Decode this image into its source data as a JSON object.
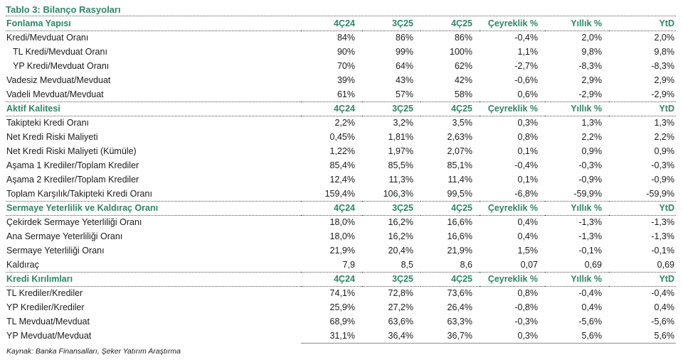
{
  "title": "Tablo 3: Bilanço Rasyoları",
  "columns": [
    "4Ç24",
    "3Ç25",
    "4Ç25",
    "Çeyreklik %",
    "Yıllık %",
    "YtD"
  ],
  "sections": [
    {
      "header": "Fonlama Yapısı",
      "rows": [
        {
          "label": "Kredi/Mevduat Oranı",
          "indent": false,
          "values": [
            "84%",
            "86%",
            "86%",
            "-0,4%",
            "2,0%",
            "2,0%"
          ]
        },
        {
          "label": "TL Kredi/Mevduat Oranı",
          "indent": true,
          "values": [
            "90%",
            "99%",
            "100%",
            "1,1%",
            "9,8%",
            "9,8%"
          ]
        },
        {
          "label": "YP Kredi/Mevduat Oranı",
          "indent": true,
          "values": [
            "70%",
            "64%",
            "62%",
            "-2,7%",
            "-8,3%",
            "-8,3%"
          ]
        },
        {
          "label": "Vadesiz Mevduat/Mevduat",
          "indent": false,
          "values": [
            "39%",
            "43%",
            "42%",
            "-0,6%",
            "2,9%",
            "2,9%"
          ]
        },
        {
          "label": "Vadeli Mevduat/Mevduat",
          "indent": false,
          "values": [
            "61%",
            "57%",
            "58%",
            "0,6%",
            "-2,9%",
            "-2,9%"
          ]
        }
      ]
    },
    {
      "header": "Aktif Kalitesi",
      "rows": [
        {
          "label": "Takipteki Kredi Oranı",
          "indent": false,
          "values": [
            "2,2%",
            "3,2%",
            "3,5%",
            "0,3%",
            "1,3%",
            "1,3%"
          ]
        },
        {
          "label": "Net Kredi Riski Maliyeti",
          "indent": false,
          "values": [
            "0,45%",
            "1,81%",
            "2,63%",
            "0,8%",
            "2,2%",
            "2,2%"
          ]
        },
        {
          "label": "Net Kredi Riski Maliyeti (Kümüle)",
          "indent": false,
          "values": [
            "1,22%",
            "1,97%",
            "2,07%",
            "0,1%",
            "0,9%",
            "0,9%"
          ]
        },
        {
          "label": "Aşama 1 Krediler/Toplam Krediler",
          "indent": false,
          "values": [
            "85,4%",
            "85,5%",
            "85,1%",
            "-0,4%",
            "-0,3%",
            "-0,3%"
          ]
        },
        {
          "label": "Aşama 2 Krediler/Toplam Krediler",
          "indent": false,
          "values": [
            "12,4%",
            "11,3%",
            "11,4%",
            "0,1%",
            "-0,9%",
            "-0,9%"
          ]
        },
        {
          "label": "Toplam Karşılık/Takipteki Kredi Oranı",
          "indent": false,
          "values": [
            "159,4%",
            "106,3%",
            "99,5%",
            "-6,8%",
            "-59,9%",
            "-59,9%"
          ]
        }
      ]
    },
    {
      "header": "Sermaye Yeterlilik ve Kaldıraç Oranı",
      "rows": [
        {
          "label": "Çekirdek Sermaye Yeterliliği Oranı",
          "indent": false,
          "values": [
            "18,0%",
            "16,2%",
            "16,6%",
            "0,4%",
            "-1,3%",
            "-1,3%"
          ]
        },
        {
          "label": "Ana Sermaye Yeterliliği Oranı",
          "indent": false,
          "values": [
            "18,0%",
            "16,2%",
            "16,6%",
            "0,4%",
            "-1,3%",
            "-1,3%"
          ]
        },
        {
          "label": "Sermaye Yeterliliği Oranı",
          "indent": false,
          "values": [
            "21,9%",
            "20,4%",
            "21,9%",
            "1,5%",
            "-0,1%",
            "-0,1%"
          ]
        },
        {
          "label": "Kaldıraç",
          "indent": false,
          "values": [
            "7,9",
            "8,5",
            "8,6",
            "0,07",
            "0,69",
            "0,69"
          ]
        }
      ]
    },
    {
      "header": "Kredi Kırılımları",
      "rows": [
        {
          "label": "TL Krediler/Krediler",
          "indent": false,
          "values": [
            "74,1%",
            "72,8%",
            "73,6%",
            "0,8%",
            "-0,4%",
            "-0,4%"
          ]
        },
        {
          "label": "YP Krediler/Krediler",
          "indent": false,
          "values": [
            "25,9%",
            "27,2%",
            "26,4%",
            "-0,8%",
            "0,4%",
            "0,4%"
          ]
        },
        {
          "label": "TL Mevduat/Mevduat",
          "indent": false,
          "values": [
            "68,9%",
            "63,6%",
            "63,3%",
            "-0,3%",
            "-5,6%",
            "-5,6%"
          ]
        },
        {
          "label": "YP Mevduat/Mevduat",
          "indent": false,
          "values": [
            "31,1%",
            "36,4%",
            "36,7%",
            "0,3%",
            "5,6%",
            "5,6%"
          ]
        }
      ]
    }
  ],
  "footer": "Kaynak: Banka Finansalları, Şeker Yatırım Araştırma",
  "colors": {
    "accent": "#2e8566",
    "text": "#1b1b1b",
    "rule_dotted": "#4f4f4f",
    "rule_solid": "#8c8c8c"
  }
}
